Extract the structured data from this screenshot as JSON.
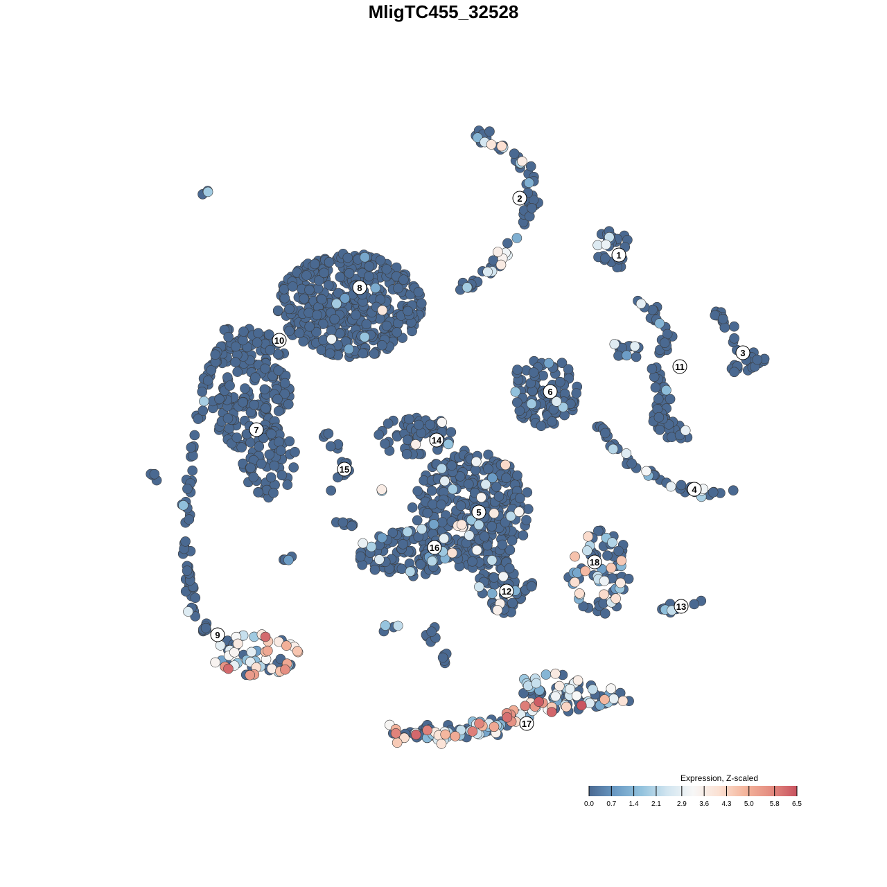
{
  "chart_data": {
    "type": "scatter",
    "title": "MligTC455_32528",
    "xlabel": "",
    "ylabel": "",
    "axes_visible": false,
    "grid": false,
    "cluster_labels": [
      "1",
      "2",
      "3",
      "4",
      "5",
      "6",
      "7",
      "8",
      "9",
      "10",
      "11",
      "12",
      "13",
      "14",
      "15",
      "16",
      "17",
      "18"
    ],
    "high_expression_clusters": [
      "9",
      "17"
    ],
    "legend": {
      "title": "Expression, Z-scaled",
      "position": "bottom-right",
      "ticks": [
        "0.0",
        "0.7",
        "1.4",
        "2.1",
        "2.9",
        "3.6",
        "4.3",
        "5.0",
        "5.8",
        "6.5"
      ],
      "range": [
        0,
        6.5
      ],
      "colors": [
        "#4a6991",
        "#6a9ac4",
        "#92c2dd",
        "#d1e5f0",
        "#f7f7f7",
        "#fbe1d3",
        "#f4b59c",
        "#e48c80",
        "#c8525f"
      ]
    }
  }
}
